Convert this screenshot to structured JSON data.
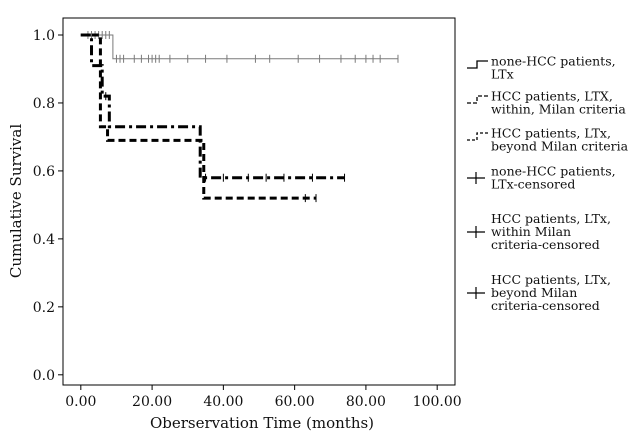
{
  "chart_data": {
    "type": "line",
    "subtype": "kaplan-meier step curves",
    "title": "",
    "xlabel": "Oberservation Time (months)",
    "ylabel": "Cumulative Survival",
    "xlim": [
      -5,
      105
    ],
    "ylim": [
      -0.03,
      1.05
    ],
    "xticks": [
      0,
      20,
      40,
      60,
      80,
      100
    ],
    "xtick_labels": [
      "0.00",
      "20.00",
      "40.00",
      "60.00",
      "80.00",
      "100.00"
    ],
    "yticks": [
      0.0,
      0.2,
      0.4,
      0.6,
      0.8,
      1.0
    ],
    "ytick_labels": [
      "0.0",
      "0.2",
      "0.4",
      "0.6",
      "0.8",
      "1.0"
    ],
    "grid": false,
    "legend_position": "right",
    "series": [
      {
        "name": "none-HCC patients, LTx",
        "style": "solid-thin",
        "color": "#7a7a7a",
        "x": [
          0,
          9,
          89
        ],
        "y": [
          1.0,
          0.93,
          0.93
        ],
        "censored_x": [
          2,
          3,
          4,
          5,
          6,
          7,
          8,
          10,
          11,
          12,
          15,
          17,
          19,
          20,
          21,
          22,
          25,
          30,
          35,
          41,
          49,
          53,
          61,
          67,
          73,
          77,
          80,
          82,
          84,
          89
        ],
        "censored_y": [
          1.0,
          1.0,
          1.0,
          1.0,
          1.0,
          1.0,
          1.0,
          0.93,
          0.93,
          0.93,
          0.93,
          0.93,
          0.93,
          0.93,
          0.93,
          0.93,
          0.93,
          0.93,
          0.93,
          0.93,
          0.93,
          0.93,
          0.93,
          0.93,
          0.93,
          0.93,
          0.93,
          0.93,
          0.93,
          0.93
        ]
      },
      {
        "name": "HCC patients, LTX, within, Milan criteria",
        "style": "dash-dot-thick",
        "color": "#000000",
        "x": [
          0,
          3,
          6,
          8,
          33.5,
          74
        ],
        "y": [
          1.0,
          0.91,
          0.82,
          0.73,
          0.58,
          0.58
        ],
        "censored_x": [
          7,
          35,
          40,
          47,
          52,
          57,
          65,
          74
        ],
        "censored_y": [
          0.82,
          0.58,
          0.58,
          0.58,
          0.58,
          0.58,
          0.58,
          0.58
        ]
      },
      {
        "name": "HCC patients, LTx, beyond Milan criteria",
        "style": "dashed-thick",
        "color": "#000000",
        "x": [
          0,
          5.5,
          7.5,
          34.5,
          66
        ],
        "y": [
          1.0,
          0.73,
          0.69,
          0.52,
          0.52
        ],
        "censored_x": [
          63,
          66
        ],
        "censored_y": [
          0.52,
          0.52
        ]
      }
    ],
    "legend": [
      {
        "label": "none-HCC patients, LTx",
        "symbol": "step-solid"
      },
      {
        "label": "HCC patients, LTX, within, Milan criteria",
        "symbol": "step-dashdot"
      },
      {
        "label": "HCC patients, LTx, beyond Milan criteria",
        "symbol": "step-dashed"
      },
      {
        "label": "none-HCC patients, LTx-censored",
        "symbol": "plus"
      },
      {
        "label": "HCC patients, LTx, within Milan criteria-censored",
        "symbol": "plus"
      },
      {
        "label": "HCC patients, LTx, beyond Milan criteria-censored",
        "symbol": "plus"
      }
    ]
  }
}
